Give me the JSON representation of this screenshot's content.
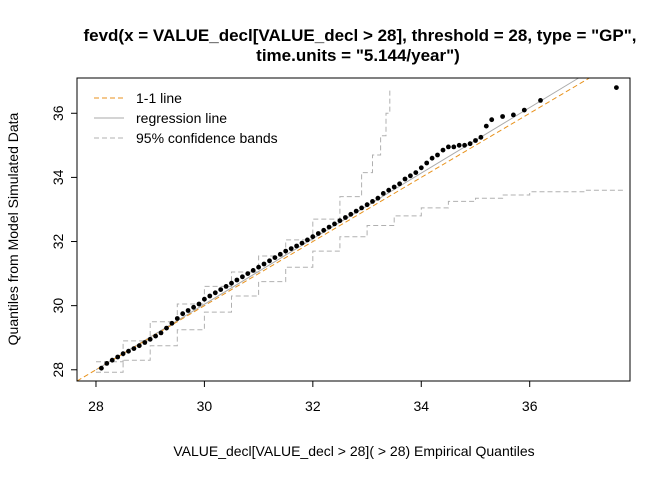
{
  "chart_data": {
    "type": "scatter",
    "title_line1": "fevd(x = VALUE_decl[VALUE_decl > 28], threshold = 28, type = \"GP\",",
    "title_line2": "time.units = \"5.144/year\")",
    "xlabel": "VALUE_decl[VALUE_decl > 28]( > 28) Empirical Quantiles",
    "ylabel": "Quantiles from Model Simulated Data",
    "xlim": [
      27.65,
      37.85
    ],
    "ylim": [
      27.65,
      37.1
    ],
    "x_ticks": [
      28,
      30,
      32,
      34,
      36
    ],
    "y_ticks": [
      28,
      30,
      32,
      34,
      36
    ],
    "x_tick_labels": [
      "28",
      "30",
      "32",
      "34",
      "36"
    ],
    "y_tick_labels": [
      "28",
      "30",
      "32",
      "34",
      "36"
    ],
    "legend": {
      "position": "top-left",
      "entries": [
        "1-1 line",
        "regression line",
        "95% confidence bands"
      ]
    },
    "colors": {
      "one_to_one": "#e8921c",
      "regression": "#aaaaaa",
      "bands": "#b0b0b0",
      "points": "#000000"
    },
    "one_to_one_line": [
      [
        27.65,
        27.65
      ],
      [
        37.85,
        37.85
      ]
    ],
    "regression_line": [
      [
        28.0,
        28.0
      ],
      [
        37.0,
        37.2
      ]
    ],
    "points": {
      "x": [
        28.1,
        28.2,
        28.3,
        28.4,
        28.5,
        28.6,
        28.7,
        28.8,
        28.9,
        29.0,
        29.1,
        29.2,
        29.3,
        29.4,
        29.5,
        29.6,
        29.7,
        29.8,
        29.9,
        30.0,
        30.1,
        30.2,
        30.3,
        30.4,
        30.5,
        30.6,
        30.7,
        30.8,
        30.9,
        31.0,
        31.1,
        31.2,
        31.3,
        31.4,
        31.5,
        31.6,
        31.7,
        31.8,
        31.9,
        32.0,
        32.1,
        32.2,
        32.3,
        32.4,
        32.5,
        32.6,
        32.7,
        32.8,
        32.9,
        33.0,
        33.1,
        33.2,
        33.3,
        33.4,
        33.5,
        33.6,
        33.7,
        33.8,
        33.9,
        34.0,
        34.1,
        34.2,
        34.3,
        34.4,
        34.5,
        34.6,
        34.7,
        34.8,
        34.9,
        35.0,
        35.1,
        35.2,
        35.3,
        35.5,
        35.7,
        35.9,
        36.2,
        37.6
      ],
      "y": [
        28.05,
        28.2,
        28.3,
        28.4,
        28.5,
        28.58,
        28.66,
        28.75,
        28.85,
        28.95,
        29.05,
        29.15,
        29.3,
        29.45,
        29.6,
        29.75,
        29.85,
        29.95,
        30.05,
        30.2,
        30.3,
        30.4,
        30.5,
        30.6,
        30.7,
        30.8,
        30.9,
        31.0,
        31.1,
        31.2,
        31.3,
        31.4,
        31.5,
        31.6,
        31.7,
        31.78,
        31.86,
        31.95,
        32.05,
        32.15,
        32.25,
        32.35,
        32.45,
        32.55,
        32.65,
        32.75,
        32.85,
        32.95,
        33.05,
        33.15,
        33.25,
        33.35,
        33.5,
        33.6,
        33.7,
        33.8,
        33.95,
        34.05,
        34.15,
        34.3,
        34.45,
        34.6,
        34.7,
        34.85,
        34.95,
        34.95,
        35.0,
        35.0,
        35.05,
        35.15,
        35.25,
        35.6,
        35.8,
        35.9,
        35.95,
        36.1,
        36.4,
        36.8
      ]
    },
    "band_upper": [
      [
        28.0,
        28.25
      ],
      [
        28.5,
        28.9
      ],
      [
        29.0,
        29.5
      ],
      [
        29.5,
        30.05
      ],
      [
        30.0,
        30.6
      ],
      [
        30.5,
        31.05
      ],
      [
        31.0,
        31.55
      ],
      [
        31.5,
        32.05
      ],
      [
        32.0,
        32.7
      ],
      [
        32.5,
        33.4
      ],
      [
        32.9,
        34.15
      ],
      [
        33.1,
        34.7
      ],
      [
        33.25,
        35.3
      ],
      [
        33.35,
        36.0
      ],
      [
        33.42,
        36.8
      ]
    ],
    "band_lower": [
      [
        28.0,
        27.92
      ],
      [
        28.5,
        28.3
      ],
      [
        29.0,
        28.75
      ],
      [
        29.5,
        29.25
      ],
      [
        30.0,
        29.8
      ],
      [
        30.5,
        30.3
      ],
      [
        31.0,
        30.75
      ],
      [
        31.5,
        31.2
      ],
      [
        32.0,
        31.7
      ],
      [
        32.5,
        32.15
      ],
      [
        33.0,
        32.5
      ],
      [
        33.5,
        32.8
      ],
      [
        34.0,
        33.05
      ],
      [
        34.5,
        33.25
      ],
      [
        35.0,
        33.35
      ],
      [
        35.5,
        33.45
      ],
      [
        36.0,
        33.55
      ],
      [
        37.0,
        33.6
      ],
      [
        37.75,
        33.6
      ]
    ]
  }
}
